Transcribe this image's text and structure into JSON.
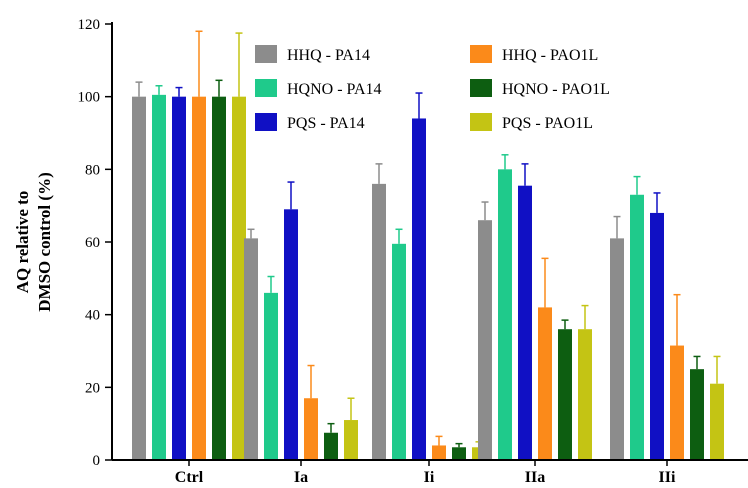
{
  "chart_data": {
    "type": "bar",
    "title": "",
    "xlabel": "",
    "ylabel": [
      "AQ relative to",
      "DMSO control (%)"
    ],
    "ylim": [
      0,
      120
    ],
    "yticks": [
      0,
      20,
      40,
      60,
      80,
      100,
      120
    ],
    "categories": [
      "Ctrl",
      "Ia",
      "Ii",
      "IIa",
      "IIi"
    ],
    "legend_position": "top-right",
    "series": [
      {
        "name": "HHQ - PA14",
        "color": "#8c8c8c",
        "values": [
          100,
          61,
          76,
          66,
          61
        ],
        "errors": [
          4,
          2.5,
          5.5,
          5,
          6
        ]
      },
      {
        "name": "HQNO - PA14",
        "color": "#1fca8b",
        "values": [
          100.5,
          46,
          59.5,
          80,
          73
        ],
        "errors": [
          2.5,
          4.5,
          4,
          4,
          5
        ]
      },
      {
        "name": "PQS - PA14",
        "color": "#1010c4",
        "values": [
          100,
          69,
          94,
          75.5,
          68
        ],
        "errors": [
          2.5,
          7.5,
          7,
          6,
          5.5
        ]
      },
      {
        "name": "HHQ - PAO1L",
        "color": "#fb8a1a",
        "values": [
          100,
          17,
          4,
          42,
          31.5
        ],
        "errors": [
          18,
          9,
          2.5,
          13.5,
          14
        ]
      },
      {
        "name": "HQNO - PAO1L",
        "color": "#0d5e11",
        "values": [
          100,
          7.5,
          3.5,
          36,
          25
        ],
        "errors": [
          4.5,
          2.5,
          1,
          2.5,
          3.5
        ]
      },
      {
        "name": "PQS - PAO1L",
        "color": "#c4c414",
        "values": [
          100,
          11,
          3.5,
          36,
          21
        ],
        "errors": [
          17.5,
          6,
          1.5,
          6.5,
          7.5
        ]
      }
    ]
  }
}
